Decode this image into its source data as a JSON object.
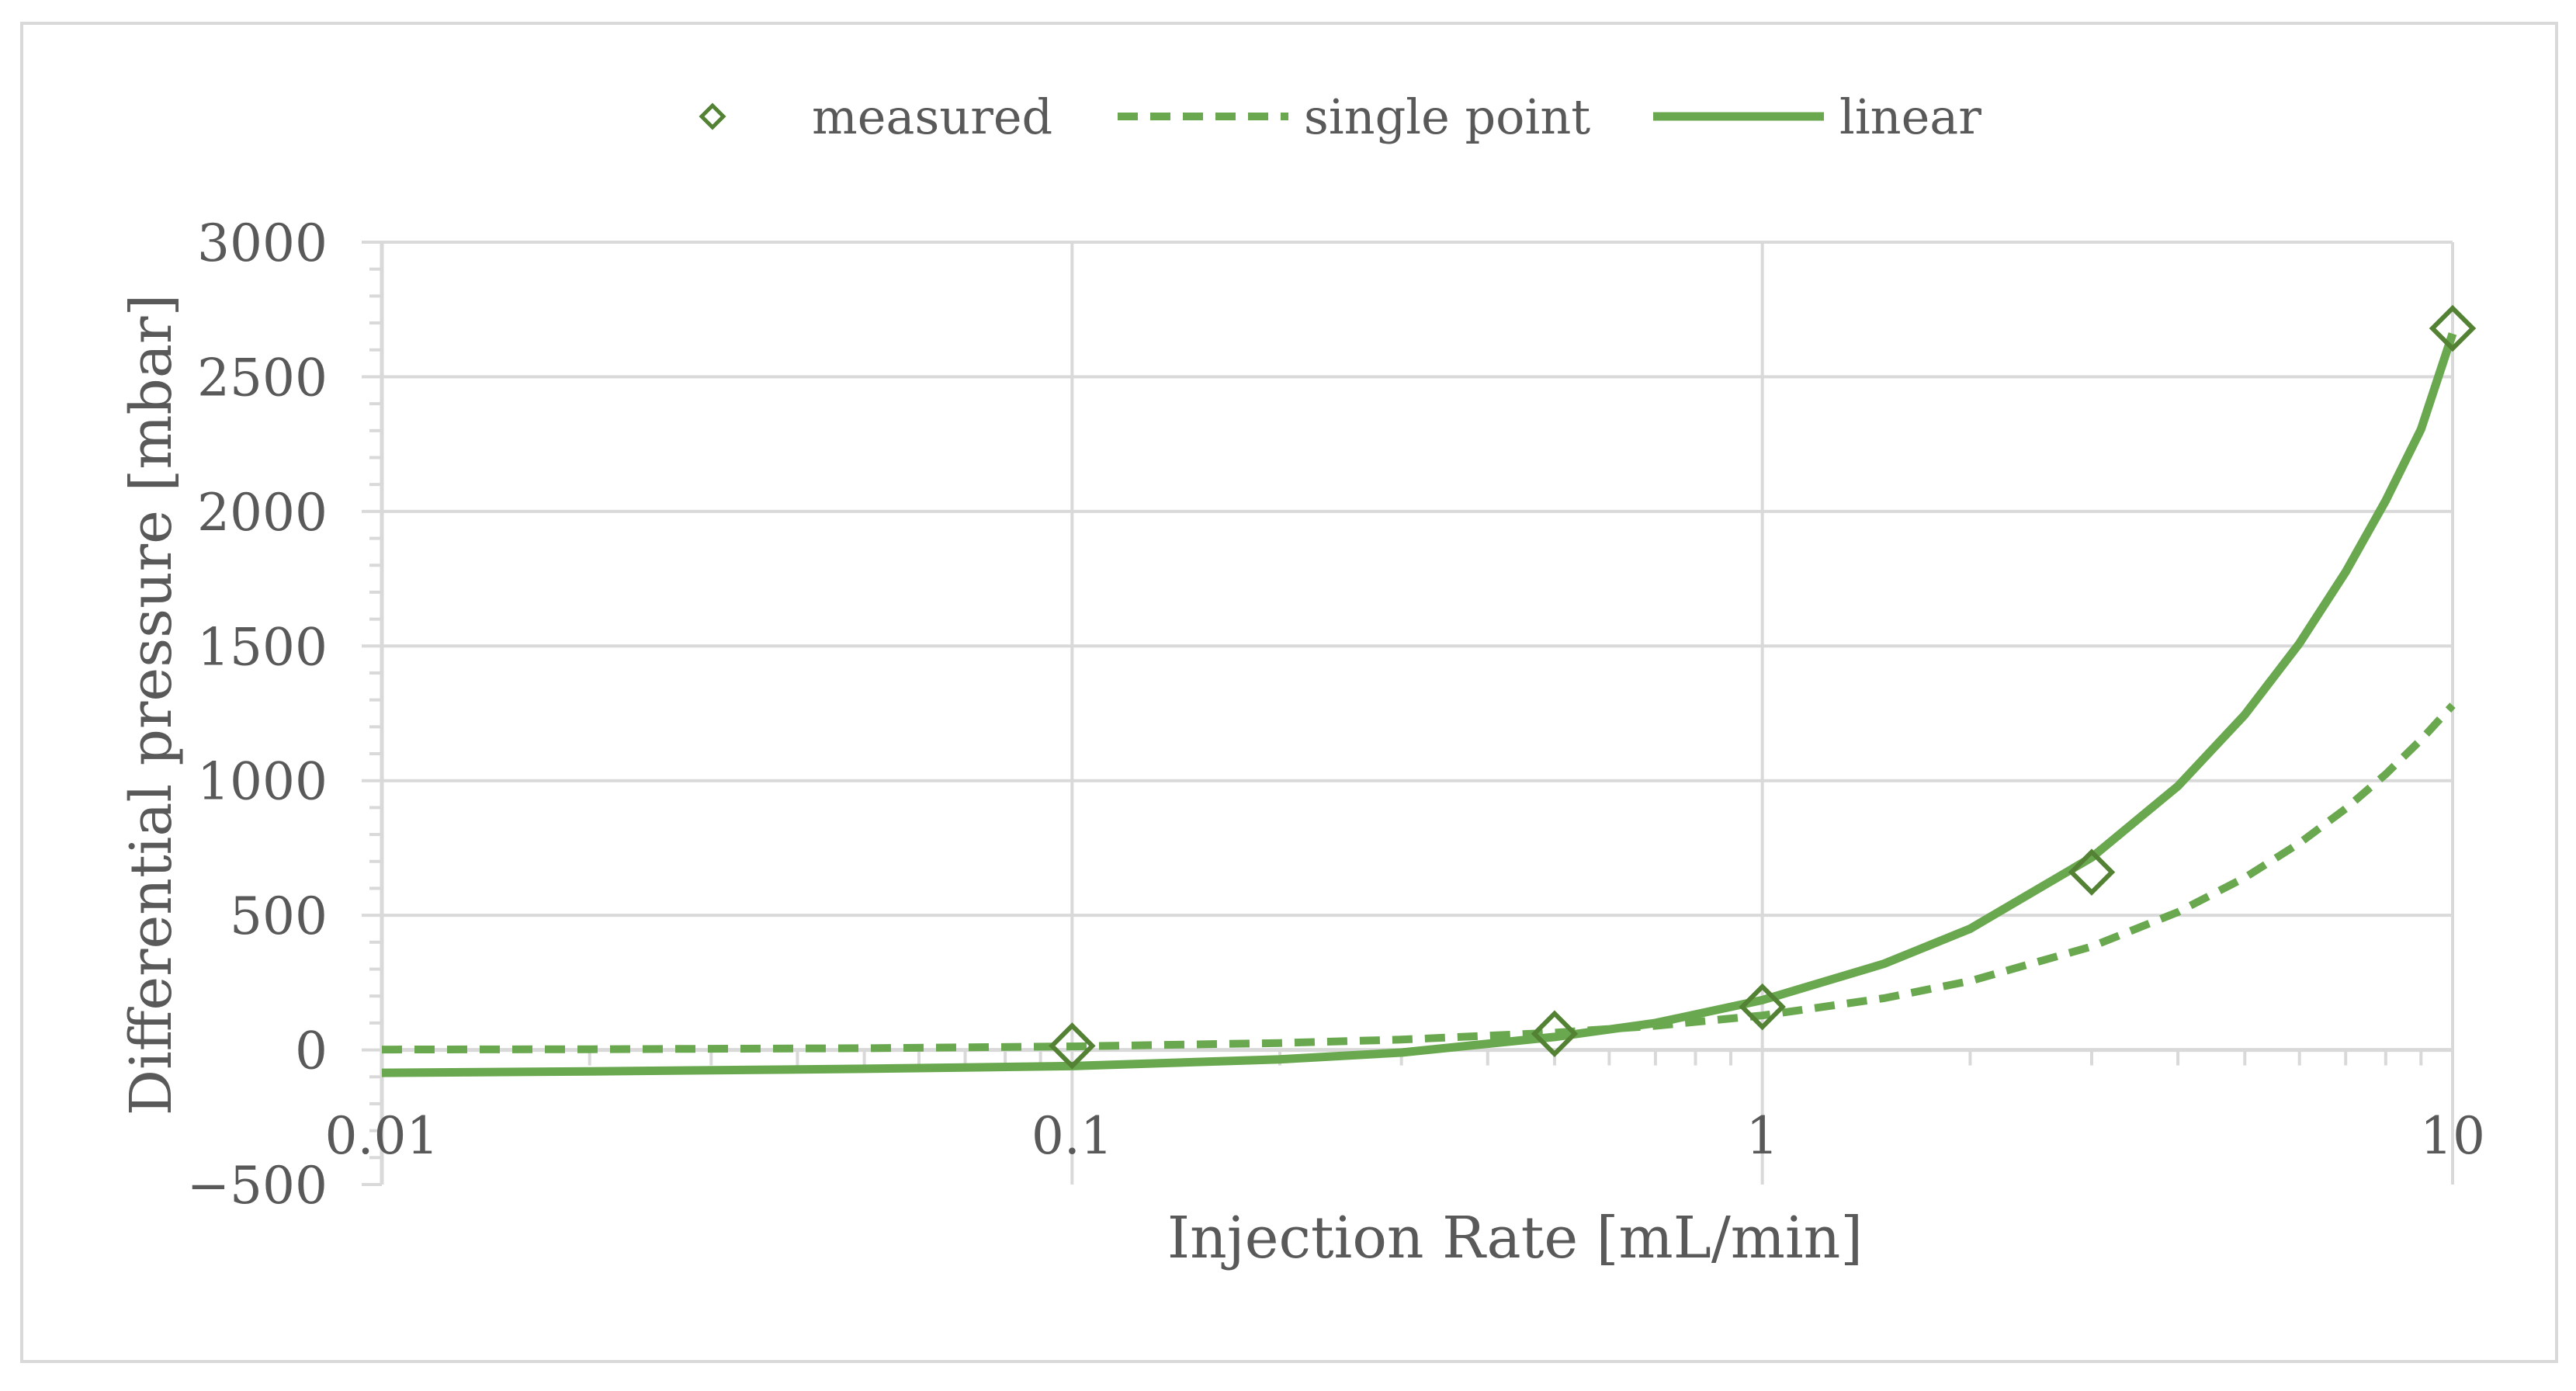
{
  "chart_data": {
    "type": "scatter",
    "title": "",
    "xlabel": "Injection Rate [mL/min]",
    "ylabel": "Differential pressure [mbar]",
    "x_scale": "log",
    "xlim": [
      0.01,
      10
    ],
    "ylim": [
      -500,
      3000
    ],
    "x_ticks": [
      0.01,
      0.1,
      1,
      10
    ],
    "x_tick_labels": [
      "0.01",
      "0.1",
      "1",
      "10"
    ],
    "y_ticks": [
      -500,
      0,
      500,
      1000,
      1500,
      2000,
      2500,
      3000
    ],
    "y_tick_labels": [
      "−500",
      "0",
      "500",
      "1000",
      "1500",
      "2000",
      "2500",
      "3000"
    ],
    "grid": true,
    "legend_position": "top",
    "colors": {
      "series": "#6aa84f",
      "marker": "#548235",
      "grid": "#d9d9d9",
      "text": "#595959"
    },
    "series": [
      {
        "name": "measured",
        "style": "markers",
        "x": [
          0.1,
          0.5,
          1,
          3,
          10
        ],
        "y": [
          15,
          60,
          160,
          660,
          2680
        ]
      },
      {
        "name": "single point",
        "style": "dashed",
        "x": [
          0.01,
          0.02,
          0.05,
          0.1,
          0.2,
          0.3,
          0.5,
          0.7,
          1,
          1.5,
          2,
          3,
          4,
          5,
          6,
          7,
          8,
          9,
          10
        ],
        "y": [
          1.3,
          2.6,
          6.4,
          12.8,
          25.6,
          38.4,
          64,
          89.6,
          128,
          192,
          256,
          384,
          512,
          640,
          768,
          896,
          1024,
          1152,
          1280
        ]
      },
      {
        "name": "linear",
        "style": "solid",
        "x": [
          0.01,
          0.02,
          0.05,
          0.1,
          0.2,
          0.3,
          0.5,
          0.7,
          1,
          1.5,
          2,
          3,
          4,
          5,
          6,
          7,
          8,
          9,
          10
        ],
        "y": [
          -85,
          -80,
          -70,
          -60,
          -35,
          -10,
          48,
          100,
          185,
          320,
          450,
          715,
          980,
          1245,
          1510,
          1775,
          2040,
          2305,
          2660
        ]
      }
    ]
  }
}
